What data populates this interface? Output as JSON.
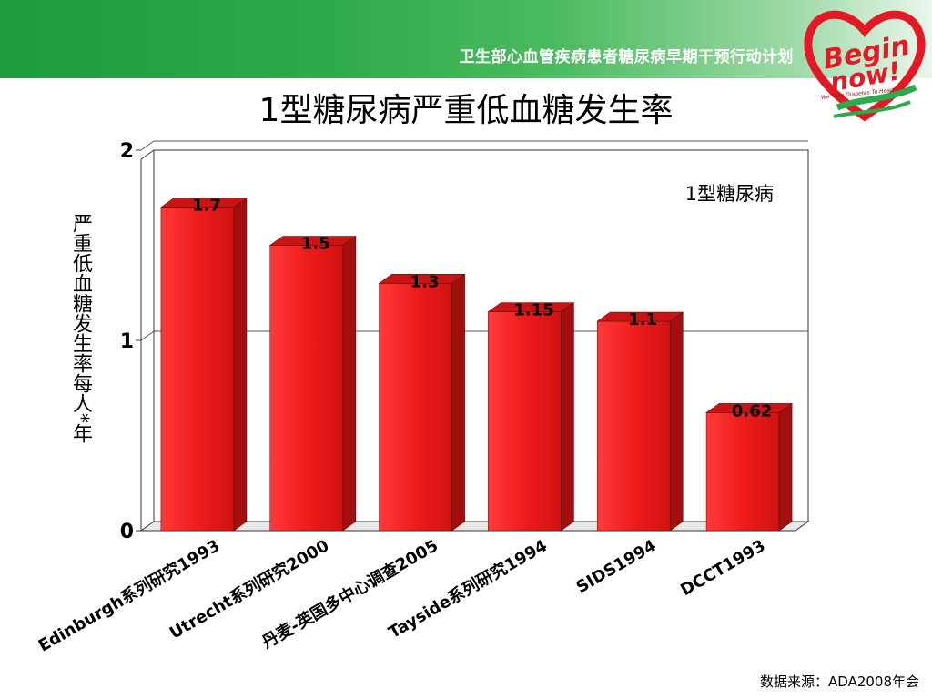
{
  "header": {
    "banner_title": "卫生部心血管疾病患者糖尿病早期干预行动计划"
  },
  "logo": {
    "line1": "Begin",
    "line2": "now!",
    "tagline": "We Take Diabetes To Heart",
    "icon": "heart-hands-logo-icon"
  },
  "slide_title": "1型糖尿病严重低血糖发生率",
  "source_note": "数据来源：ADA2008年会",
  "colors": {
    "bar_front": "#ee1c1c",
    "bar_side": "#a30f0f",
    "bar_top": "#c81414",
    "banner": "#2eaa4a"
  },
  "chart_data": {
    "type": "bar",
    "title": "1型糖尿病严重低血糖发生率",
    "annotation": "1型糖尿病",
    "ylabel": "严重低血糖发生率每人*年",
    "xlabel": "",
    "ylim": [
      0,
      2
    ],
    "yticks": [
      "0",
      "1",
      "2"
    ],
    "grid": true,
    "categories": [
      "Edinburgh系列研究1993",
      "Utrecht系列研究2000",
      "丹麦-英国多中心调查2005",
      "Tayside系列研究1994",
      "SIDS1994",
      "DCCT1993"
    ],
    "values": [
      1.7,
      1.5,
      1.3,
      1.15,
      1.1,
      0.62
    ],
    "value_labels": [
      "1.7",
      "1.5",
      "1.3",
      "1.15",
      "1.1",
      "0.62"
    ]
  }
}
